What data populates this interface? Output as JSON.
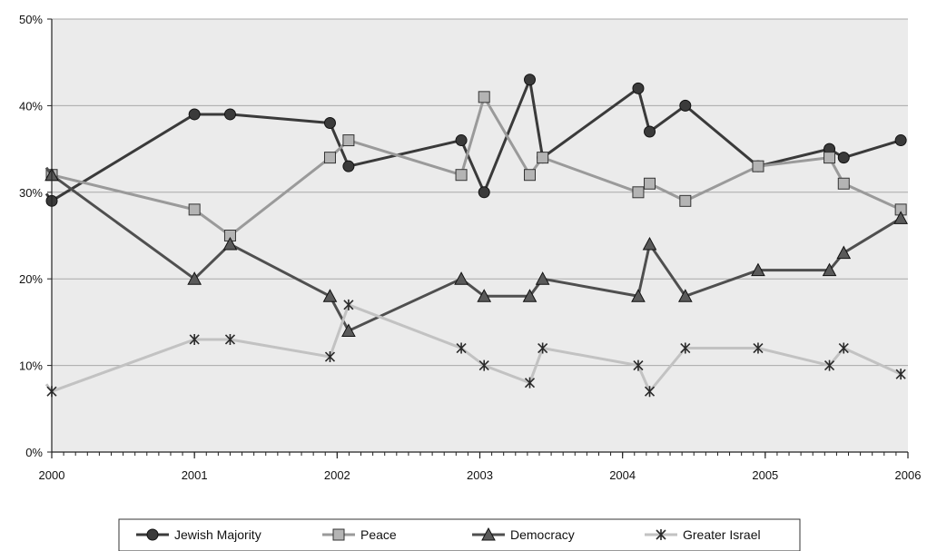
{
  "chart_data": {
    "type": "line",
    "title": "",
    "xlabel": "",
    "ylabel": "",
    "x_ticks": [
      "2000",
      "2001",
      "2002",
      "2003",
      "2004",
      "2005",
      "2006"
    ],
    "y_ticks": [
      "0%",
      "10%",
      "20%",
      "30%",
      "40%",
      "50%"
    ],
    "xlim": [
      2000,
      2006
    ],
    "ylim": [
      0,
      50
    ],
    "grid": "horizontal",
    "plot_background": "#ebebeb",
    "legend_position": "bottom",
    "series": [
      {
        "name": "Jewish Majority",
        "marker": "circle",
        "color": "#3a3a3a",
        "marker_fill": "#3a3a3a",
        "x": [
          2000.0,
          2001.0,
          2001.25,
          2001.95,
          2002.08,
          2002.87,
          2003.03,
          2003.35,
          2003.44,
          2004.11,
          2004.19,
          2004.44,
          2004.95,
          2005.45,
          2005.55,
          2005.95
        ],
        "y": [
          29,
          39,
          39,
          38,
          33,
          36,
          30,
          43,
          34,
          42,
          37,
          40,
          33,
          35,
          34,
          36
        ]
      },
      {
        "name": "Peace",
        "marker": "square",
        "color": "#9a9a9a",
        "marker_fill": "#b4b4b4",
        "x": [
          2000.0,
          2001.0,
          2001.25,
          2001.95,
          2002.08,
          2002.87,
          2003.03,
          2003.35,
          2003.44,
          2004.11,
          2004.19,
          2004.44,
          2004.95,
          2005.45,
          2005.55,
          2005.95
        ],
        "y": [
          32,
          28,
          25,
          34,
          36,
          32,
          41,
          32,
          34,
          30,
          31,
          29,
          33,
          34,
          31,
          28
        ]
      },
      {
        "name": "Democracy",
        "marker": "triangle",
        "color": "#4f4f4f",
        "marker_fill": "#5a5a5a",
        "x": [
          2000.0,
          2001.0,
          2001.25,
          2001.95,
          2002.08,
          2002.87,
          2003.03,
          2003.35,
          2003.44,
          2004.11,
          2004.19,
          2004.44,
          2004.95,
          2005.45,
          2005.55,
          2005.95
        ],
        "y": [
          32,
          20,
          24,
          18,
          14,
          20,
          18,
          18,
          20,
          18,
          24,
          18,
          21,
          21,
          23,
          27
        ]
      },
      {
        "name": "Greater Israel",
        "marker": "asterisk",
        "color": "#c2c2c2",
        "marker_fill": "#2a2a2a",
        "x": [
          2000.0,
          2001.0,
          2001.25,
          2001.95,
          2002.08,
          2002.87,
          2003.03,
          2003.35,
          2003.44,
          2004.11,
          2004.19,
          2004.44,
          2004.95,
          2005.45,
          2005.55,
          2005.95
        ],
        "y": [
          7,
          13,
          13,
          11,
          17,
          12,
          10,
          8,
          12,
          10,
          7,
          12,
          12,
          10,
          12,
          9
        ]
      }
    ]
  }
}
